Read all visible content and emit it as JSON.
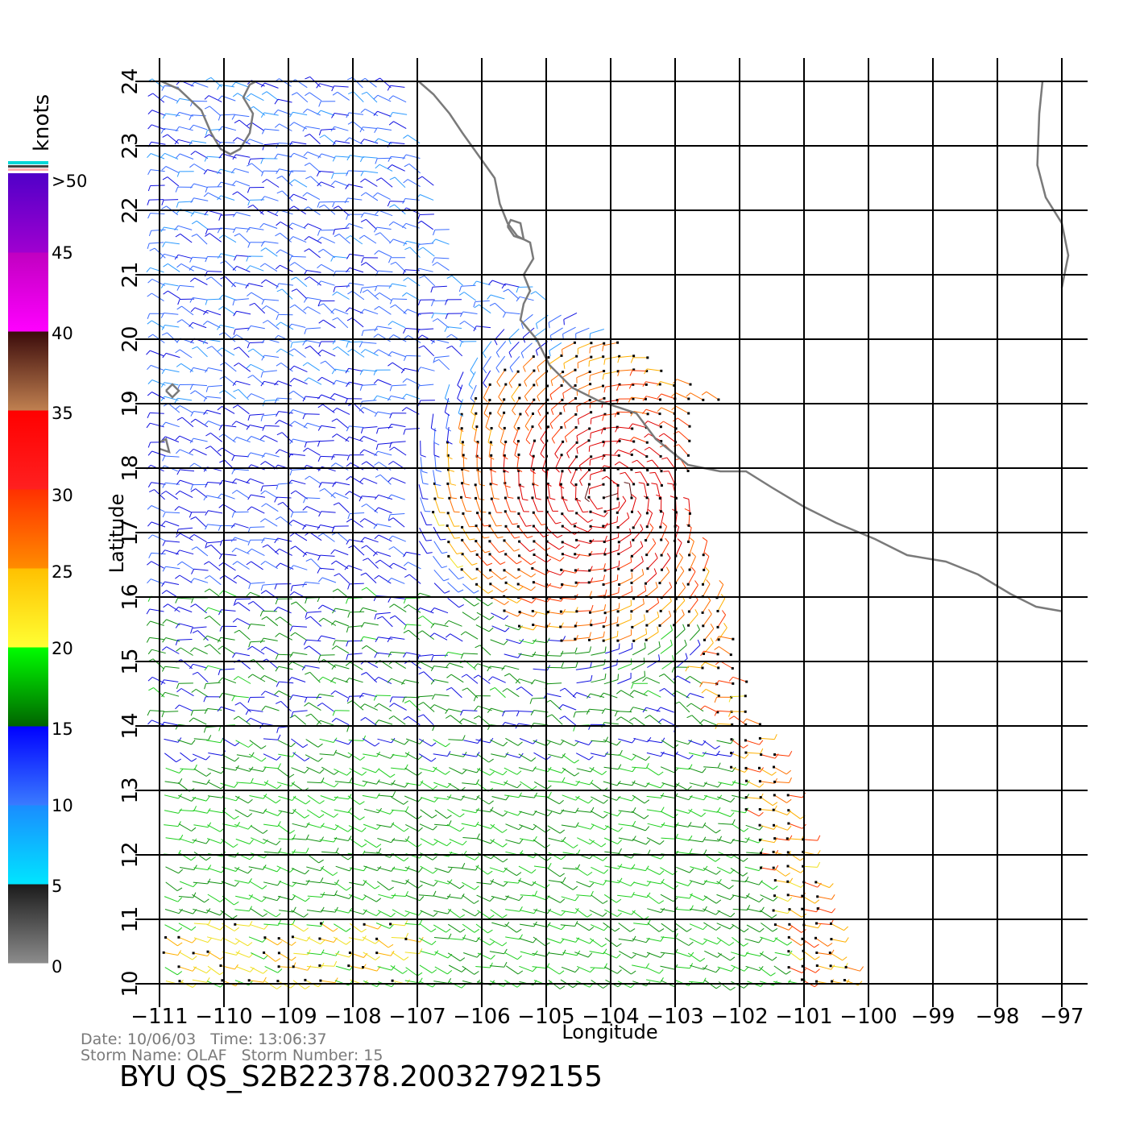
{
  "map": {
    "x_axis": {
      "label": "Longitude",
      "ticks": [
        "−111",
        "−110",
        "−109",
        "−108",
        "−107",
        "−106",
        "−105",
        "−104",
        "−103",
        "−102",
        "−101",
        "−100",
        "−99",
        "−98",
        "−97"
      ],
      "range": [
        -111,
        -97
      ]
    },
    "y_axis": {
      "label": "Latitude",
      "ticks": [
        "10",
        "11",
        "12",
        "13",
        "14",
        "15",
        "16",
        "17",
        "18",
        "19",
        "20",
        "21",
        "22",
        "23",
        "24"
      ],
      "range": [
        10,
        24
      ]
    },
    "grid": true,
    "coast_color": "#7a7a7a"
  },
  "legend": {
    "unit_label": "knots",
    "labels": [
      "0",
      "5",
      "10",
      "15",
      "20",
      "25",
      "30",
      "35",
      "40",
      "45",
      ">50"
    ],
    "bands": [
      {
        "from": 0,
        "to": 5,
        "colors": [
          "#8c8c8c",
          "#1a1a1a"
        ]
      },
      {
        "from": 5,
        "to": 10,
        "colors": [
          "#00e5ff",
          "#1a8cff"
        ]
      },
      {
        "from": 10,
        "to": 15,
        "colors": [
          "#3a7bff",
          "#0000ff"
        ]
      },
      {
        "from": 15,
        "to": 20,
        "colors": [
          "#006400",
          "#00ff00"
        ]
      },
      {
        "from": 20,
        "to": 25,
        "colors": [
          "#ffff33",
          "#ffc000"
        ]
      },
      {
        "from": 25,
        "to": 30,
        "colors": [
          "#ff8c00",
          "#ff3000"
        ]
      },
      {
        "from": 30,
        "to": 35,
        "colors": [
          "#ff2020",
          "#ff0000"
        ]
      },
      {
        "from": 35,
        "to": 40,
        "colors": [
          "#c08050",
          "#3a0a0a"
        ]
      },
      {
        "from": 40,
        "to": 45,
        "colors": [
          "#ff00ff",
          "#c000c0"
        ]
      },
      {
        "from": 45,
        "to": 50,
        "colors": [
          "#a000d0",
          "#5000c8"
        ]
      }
    ]
  },
  "info": {
    "date_line": "Date: 10/06/03   Time: 13:06:37",
    "storm_line": "Storm Name: OLAF   Storm Number: 15",
    "product": "BYU QS_S2B22378.20032792155"
  }
}
